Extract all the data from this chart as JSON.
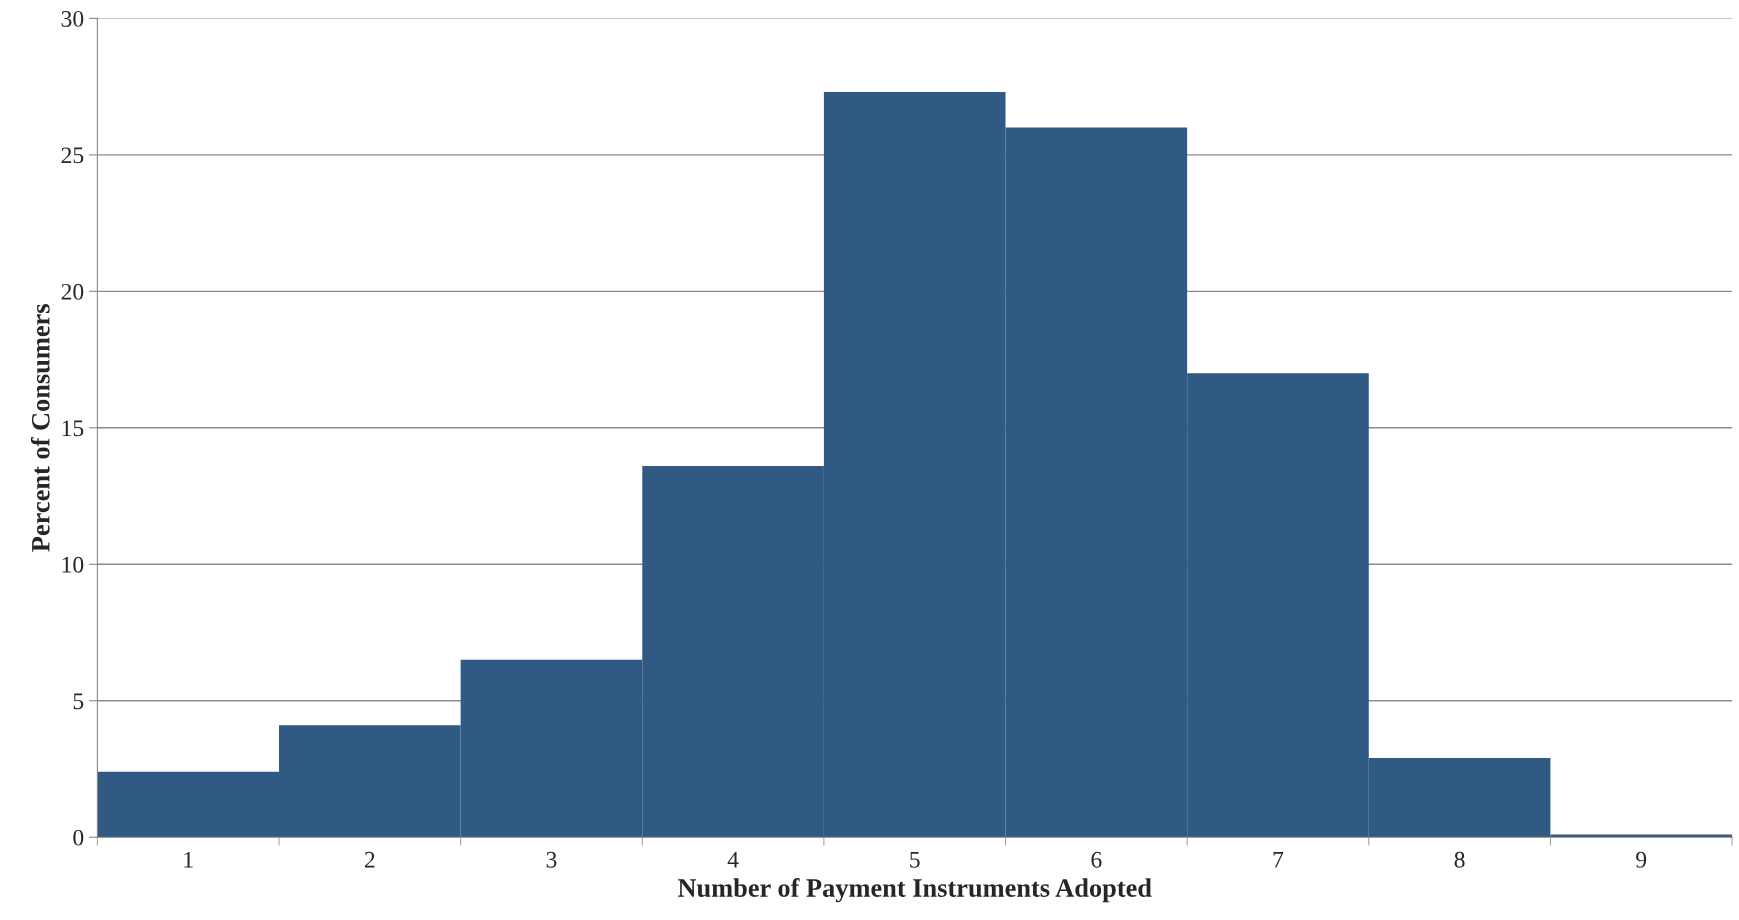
{
  "chart_data": {
    "type": "bar",
    "xlabel": "Number of Payment Instruments Adopted",
    "ylabel": "Percent of Consumers",
    "categories": [
      "1",
      "2",
      "3",
      "4",
      "5",
      "6",
      "7",
      "8",
      "9"
    ],
    "values": [
      2.4,
      4.1,
      6.5,
      13.6,
      27.3,
      26.0,
      17.0,
      2.9,
      0.1
    ],
    "color": "#305a84",
    "ylim": [
      0,
      30
    ],
    "yticks": [
      0,
      5,
      10,
      15,
      20,
      25,
      30
    ],
    "grid": "y",
    "legend": false
  }
}
